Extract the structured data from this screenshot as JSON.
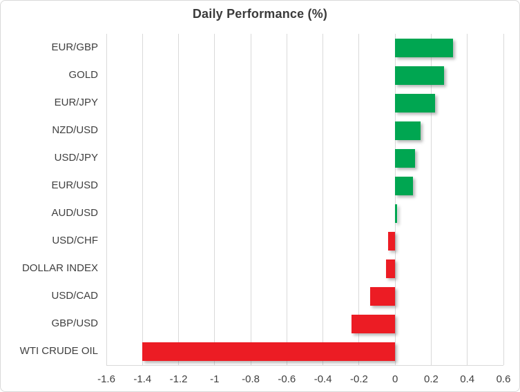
{
  "chart_data": {
    "type": "bar",
    "orientation": "horizontal",
    "title": "Daily Performance (%)",
    "categories": [
      "EUR/GBP",
      "GOLD",
      "EUR/JPY",
      "NZD/USD",
      "USD/JPY",
      "EUR/USD",
      "AUD/USD",
      "USD/CHF",
      "DOLLAR INDEX",
      "USD/CAD",
      "GBP/USD",
      "WTI CRUDE OIL"
    ],
    "values": [
      0.32,
      0.27,
      0.22,
      0.14,
      0.11,
      0.1,
      0.01,
      -0.04,
      -0.05,
      -0.14,
      -0.24,
      -1.4
    ],
    "xlim": [
      -1.6,
      0.6
    ],
    "x_ticks": [
      -1.6,
      -1.4,
      -1.2,
      -1.0,
      -0.8,
      -0.6,
      -0.4,
      -0.2,
      0,
      0.2,
      0.4,
      0.6
    ],
    "x_tick_labels": [
      "-1.6",
      "-1.4",
      "-1.2",
      "-1",
      "-0.8",
      "-0.6",
      "-0.4",
      "-0.2",
      "0",
      "0.2",
      "0.4",
      "0.6"
    ],
    "xlabel": "",
    "ylabel": "",
    "grid": "vertical",
    "legend": "none",
    "colors": {
      "positive": "#00a651",
      "negative": "#ec1c24",
      "gridline": "#d9d9d9",
      "title_text": "#3b3b3b",
      "label_text": "#3f3f3f"
    }
  }
}
